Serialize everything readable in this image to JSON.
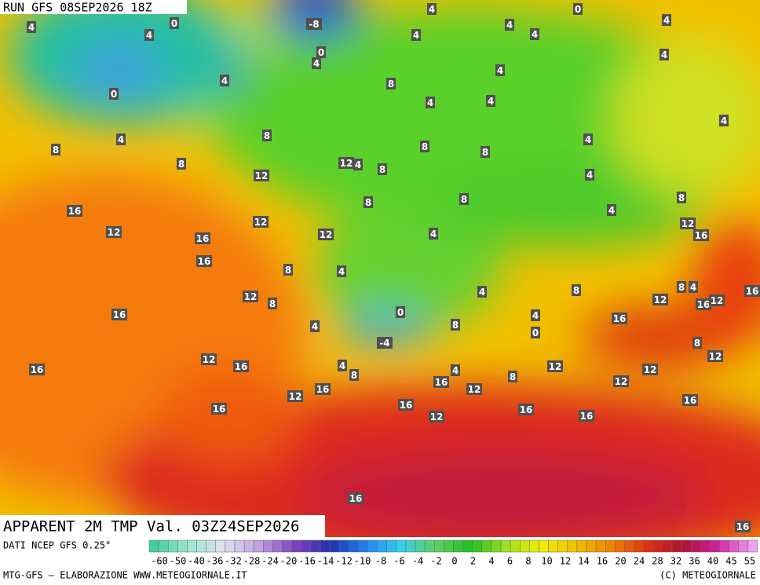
{
  "header": {
    "run": "RUN GFS 08SEP2026 18Z",
    "title": "APPARENT 2M TMP Val. 03Z24SEP2026"
  },
  "map_labels": [
    4,
    4,
    0,
    0,
    4,
    8,
    8,
    8,
    0,
    4,
    -8,
    4,
    4,
    0,
    4,
    4,
    4,
    4,
    4,
    4,
    8,
    4,
    4,
    4,
    4,
    8,
    8,
    12,
    4,
    8,
    12,
    4,
    16,
    8,
    8,
    4,
    8,
    12,
    12,
    12,
    4,
    12,
    16,
    16,
    16,
    8,
    4,
    12,
    8,
    4,
    8,
    8,
    4,
    16,
    12,
    16,
    12,
    16,
    4,
    0,
    8,
    4,
    0,
    16,
    -4,
    8,
    16,
    12,
    16,
    4,
    8,
    4,
    12,
    12,
    12,
    8,
    12,
    16,
    16,
    12,
    12,
    16,
    16,
    12,
    16,
    16,
    16,
    16,
    16
  ],
  "colorbar": {
    "source": "DATI NCEP GFS 0.25°",
    "labels": [
      -60,
      -50,
      -40,
      -36,
      -32,
      -28,
      -24,
      -20,
      -16,
      -14,
      -12,
      -10,
      -8,
      -6,
      -4,
      -2,
      0,
      2,
      4,
      6,
      8,
      10,
      12,
      14,
      16,
      20,
      24,
      28,
      32,
      36,
      40,
      45,
      55
    ]
  },
  "footer": {
    "left": "MTG-GFS — ELABORAZIONE WWW.METEOGIORNALE.IT",
    "right": "(C) METEOGIORNALE"
  }
}
